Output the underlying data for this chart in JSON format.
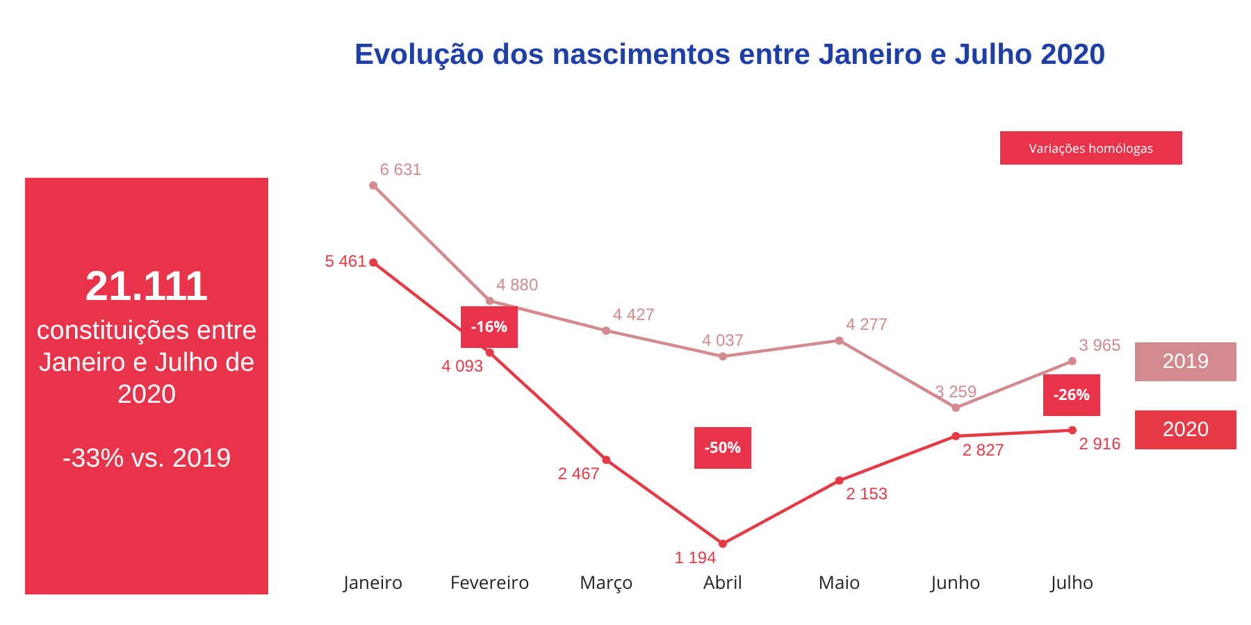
{
  "chart_data": [
    {
      "type": "other",
      "title": "21.111",
      "subtitle": "constituições entre Janeiro e Julho de 2020",
      "annotations": [
        "-33% vs. 2019"
      ]
    },
    {
      "type": "line",
      "title": "Evolução dos nascimentos entre Janeiro e Julho 2020",
      "categories": [
        "Janeiro",
        "Fevereiro",
        "Março",
        "Abril",
        "Maio",
        "Junho",
        "Julho"
      ],
      "series": [
        {
          "name": "2019",
          "color": "#d28a8e",
          "values": [
            6631,
            4880,
            4427,
            4037,
            4277,
            3259,
            3965
          ]
        },
        {
          "name": "2020",
          "color": "#e63946",
          "values": [
            5461,
            4093,
            2467,
            1194,
            2153,
            2827,
            2916
          ]
        }
      ],
      "data_labels": true,
      "marker": "circle",
      "grid": false,
      "legend": false,
      "annotations": [
        {
          "text": "-16%",
          "x": "Fevereiro",
          "y": 4480
        },
        {
          "text": "-50%",
          "x": "Abril",
          "y": 2650
        },
        {
          "text": "-26%",
          "x": "Julho",
          "y": 3450
        },
        "Variações homólogas"
      ]
    }
  ]
}
